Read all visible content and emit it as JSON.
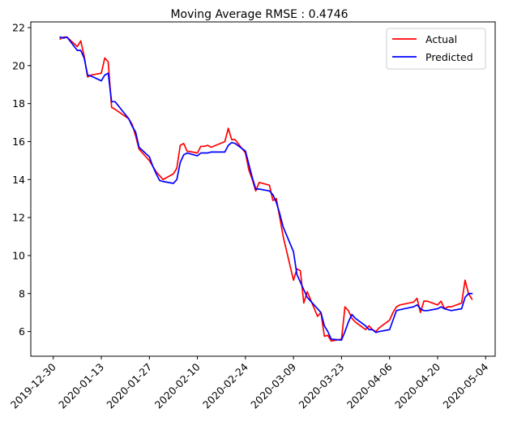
{
  "chart_data": {
    "type": "line",
    "title": "Moving Average RMSE : 0.4746",
    "xlabel": "",
    "ylabel": "",
    "x_axis": {
      "start_date": "2019-12-30",
      "end_date": "2020-05-04",
      "tick_labels": [
        "2019-12-30",
        "2020-01-13",
        "2020-01-27",
        "2020-02-10",
        "2020-02-24",
        "2020-03-09",
        "2020-03-23",
        "2020-04-06",
        "2020-04-20",
        "2020-05-04"
      ]
    },
    "y_axis": {
      "ylim": [
        4.7,
        22.3
      ],
      "ticks": [
        6,
        8,
        10,
        12,
        14,
        16,
        18,
        20,
        22
      ]
    },
    "legend": {
      "placement": "top-right"
    },
    "grid": false,
    "series": [
      {
        "name": "Actual",
        "color": "#ff0000",
        "points": [
          [
            "2020-01-01",
            21.4
          ],
          [
            "2020-01-02",
            21.5
          ],
          [
            "2020-01-03",
            21.5
          ],
          [
            "2020-01-06",
            21.0
          ],
          [
            "2020-01-07",
            21.3
          ],
          [
            "2020-01-08",
            20.5
          ],
          [
            "2020-01-09",
            19.4
          ],
          [
            "2020-01-10",
            19.5
          ],
          [
            "2020-01-13",
            19.6
          ],
          [
            "2020-01-14",
            20.4
          ],
          [
            "2020-01-15",
            20.2
          ],
          [
            "2020-01-16",
            17.8
          ],
          [
            "2020-01-17",
            17.7
          ],
          [
            "2020-01-21",
            17.2
          ],
          [
            "2020-01-22",
            16.9
          ],
          [
            "2020-01-23",
            16.3
          ],
          [
            "2020-01-24",
            15.6
          ],
          [
            "2020-01-27",
            15.0
          ],
          [
            "2020-01-28",
            14.7
          ],
          [
            "2020-01-29",
            14.4
          ],
          [
            "2020-01-30",
            14.2
          ],
          [
            "2020-01-31",
            14.0
          ],
          [
            "2020-02-03",
            14.3
          ],
          [
            "2020-02-04",
            14.6
          ],
          [
            "2020-02-05",
            15.8
          ],
          [
            "2020-02-06",
            15.9
          ],
          [
            "2020-02-07",
            15.5
          ],
          [
            "2020-02-10",
            15.4
          ],
          [
            "2020-02-11",
            15.75
          ],
          [
            "2020-02-12",
            15.75
          ],
          [
            "2020-02-13",
            15.8
          ],
          [
            "2020-02-14",
            15.7
          ],
          [
            "2020-02-18",
            16.0
          ],
          [
            "2020-02-19",
            16.7
          ],
          [
            "2020-02-20",
            16.1
          ],
          [
            "2020-02-21",
            16.1
          ],
          [
            "2020-02-24",
            15.4
          ],
          [
            "2020-02-25",
            14.5
          ],
          [
            "2020-02-26",
            14.0
          ],
          [
            "2020-02-27",
            13.4
          ],
          [
            "2020-02-28",
            13.85
          ],
          [
            "2020-03-02",
            13.7
          ],
          [
            "2020-03-03",
            12.9
          ],
          [
            "2020-03-04",
            13.0
          ],
          [
            "2020-03-05",
            12.0
          ],
          [
            "2020-03-06",
            11.0
          ],
          [
            "2020-03-09",
            8.7
          ],
          [
            "2020-03-10",
            9.3
          ],
          [
            "2020-03-11",
            9.2
          ],
          [
            "2020-03-12",
            7.5
          ],
          [
            "2020-03-13",
            8.1
          ],
          [
            "2020-03-16",
            6.8
          ],
          [
            "2020-03-17",
            7.0
          ],
          [
            "2020-03-18",
            5.75
          ],
          [
            "2020-03-19",
            5.8
          ],
          [
            "2020-03-20",
            5.5
          ],
          [
            "2020-03-23",
            5.6
          ],
          [
            "2020-03-24",
            7.3
          ],
          [
            "2020-03-25",
            7.1
          ],
          [
            "2020-03-26",
            6.7
          ],
          [
            "2020-03-27",
            6.5
          ],
          [
            "2020-03-30",
            6.1
          ],
          [
            "2020-03-31",
            6.3
          ],
          [
            "2020-04-01",
            6.1
          ],
          [
            "2020-04-02",
            6.0
          ],
          [
            "2020-04-03",
            6.2
          ],
          [
            "2020-04-06",
            6.6
          ],
          [
            "2020-04-07",
            7.0
          ],
          [
            "2020-04-08",
            7.3
          ],
          [
            "2020-04-09",
            7.4
          ],
          [
            "2020-04-13",
            7.55
          ],
          [
            "2020-04-14",
            7.75
          ],
          [
            "2020-04-15",
            7.0
          ],
          [
            "2020-04-16",
            7.6
          ],
          [
            "2020-04-17",
            7.6
          ],
          [
            "2020-04-20",
            7.4
          ],
          [
            "2020-04-21",
            7.6
          ],
          [
            "2020-04-22",
            7.2
          ],
          [
            "2020-04-23",
            7.3
          ],
          [
            "2020-04-24",
            7.3
          ],
          [
            "2020-04-27",
            7.5
          ],
          [
            "2020-04-28",
            8.7
          ],
          [
            "2020-04-29",
            8.0
          ],
          [
            "2020-04-30",
            7.7
          ]
        ]
      },
      {
        "name": "Predicted",
        "color": "#0000ff",
        "points": [
          [
            "2020-01-01",
            21.5
          ],
          [
            "2020-01-02",
            21.45
          ],
          [
            "2020-01-03",
            21.5
          ],
          [
            "2020-01-06",
            20.8
          ],
          [
            "2020-01-07",
            20.8
          ],
          [
            "2020-01-08",
            20.4
          ],
          [
            "2020-01-09",
            19.5
          ],
          [
            "2020-01-10",
            19.45
          ],
          [
            "2020-01-13",
            19.2
          ],
          [
            "2020-01-14",
            19.5
          ],
          [
            "2020-01-15",
            19.6
          ],
          [
            "2020-01-16",
            18.1
          ],
          [
            "2020-01-17",
            18.1
          ],
          [
            "2020-01-21",
            17.2
          ],
          [
            "2020-01-22",
            16.8
          ],
          [
            "2020-01-23",
            16.5
          ],
          [
            "2020-01-24",
            15.7
          ],
          [
            "2020-01-27",
            15.2
          ],
          [
            "2020-01-28",
            14.7
          ],
          [
            "2020-01-29",
            14.3
          ],
          [
            "2020-01-30",
            13.95
          ],
          [
            "2020-01-31",
            13.9
          ],
          [
            "2020-02-03",
            13.8
          ],
          [
            "2020-02-04",
            14.0
          ],
          [
            "2020-02-05",
            14.9
          ],
          [
            "2020-02-06",
            15.3
          ],
          [
            "2020-02-07",
            15.4
          ],
          [
            "2020-02-10",
            15.25
          ],
          [
            "2020-02-11",
            15.4
          ],
          [
            "2020-02-12",
            15.4
          ],
          [
            "2020-02-13",
            15.4
          ],
          [
            "2020-02-14",
            15.45
          ],
          [
            "2020-02-18",
            15.45
          ],
          [
            "2020-02-19",
            15.8
          ],
          [
            "2020-02-20",
            15.95
          ],
          [
            "2020-02-21",
            15.9
          ],
          [
            "2020-02-24",
            15.5
          ],
          [
            "2020-02-25",
            14.8
          ],
          [
            "2020-02-26",
            14.1
          ],
          [
            "2020-02-27",
            13.5
          ],
          [
            "2020-02-28",
            13.5
          ],
          [
            "2020-03-02",
            13.4
          ],
          [
            "2020-03-03",
            13.2
          ],
          [
            "2020-03-04",
            12.8
          ],
          [
            "2020-03-05",
            12.2
          ],
          [
            "2020-03-06",
            11.5
          ],
          [
            "2020-03-09",
            10.2
          ],
          [
            "2020-03-10",
            9.0
          ],
          [
            "2020-03-11",
            8.6
          ],
          [
            "2020-03-12",
            8.2
          ],
          [
            "2020-03-13",
            7.8
          ],
          [
            "2020-03-16",
            7.2
          ],
          [
            "2020-03-17",
            7.0
          ],
          [
            "2020-03-18",
            6.3
          ],
          [
            "2020-03-19",
            6.0
          ],
          [
            "2020-03-20",
            5.6
          ],
          [
            "2020-03-23",
            5.55
          ],
          [
            "2020-03-24",
            6.0
          ],
          [
            "2020-03-25",
            6.5
          ],
          [
            "2020-03-26",
            6.9
          ],
          [
            "2020-03-27",
            6.7
          ],
          [
            "2020-03-30",
            6.3
          ],
          [
            "2020-03-31",
            6.1
          ],
          [
            "2020-04-01",
            6.1
          ],
          [
            "2020-04-02",
            5.95
          ],
          [
            "2020-04-03",
            6.0
          ],
          [
            "2020-04-06",
            6.1
          ],
          [
            "2020-04-07",
            6.6
          ],
          [
            "2020-04-08",
            7.1
          ],
          [
            "2020-04-09",
            7.15
          ],
          [
            "2020-04-13",
            7.3
          ],
          [
            "2020-04-14",
            7.4
          ],
          [
            "2020-04-15",
            7.2
          ],
          [
            "2020-04-16",
            7.1
          ],
          [
            "2020-04-17",
            7.1
          ],
          [
            "2020-04-20",
            7.2
          ],
          [
            "2020-04-21",
            7.3
          ],
          [
            "2020-04-22",
            7.2
          ],
          [
            "2020-04-23",
            7.15
          ],
          [
            "2020-04-24",
            7.1
          ],
          [
            "2020-04-27",
            7.2
          ],
          [
            "2020-04-28",
            7.8
          ],
          [
            "2020-04-29",
            8.0
          ],
          [
            "2020-04-30",
            8.0
          ]
        ]
      }
    ]
  }
}
